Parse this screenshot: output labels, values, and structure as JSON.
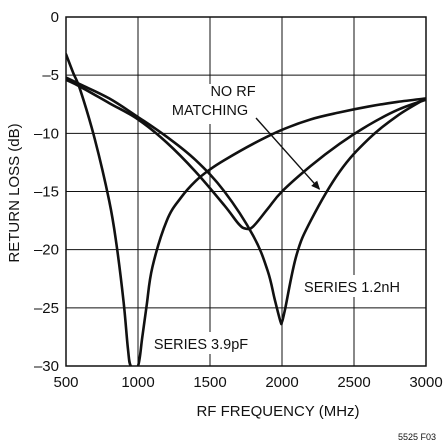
{
  "chart_data": {
    "type": "line",
    "title": "",
    "xlabel": "RF FREQUENCY (MHz)",
    "ylabel": "RETURN LOSS (dB)",
    "xlim": [
      500,
      3000
    ],
    "ylim": [
      -30,
      0
    ],
    "x_ticks": [
      500,
      1000,
      1500,
      2000,
      2500,
      3000
    ],
    "y_ticks": [
      0,
      -5,
      -10,
      -15,
      -20,
      -25,
      -30
    ],
    "x_tick_labels": [
      "500",
      "1000",
      "1500",
      "2000",
      "2500",
      "3000"
    ],
    "y_tick_labels": [
      "0",
      "–5",
      "–10",
      "–15",
      "–20",
      "–25",
      "–30"
    ],
    "grid": true,
    "series": [
      {
        "name": "NO RF MATCHING",
        "x": [
          500,
          600,
          800,
          1000,
          1200,
          1400,
          1600,
          1700,
          1750,
          1800,
          1900,
          2000,
          2200,
          2400,
          2600,
          2800,
          3000
        ],
        "y": [
          -5.4,
          -6.0,
          -7.4,
          -8.8,
          -10.8,
          -13.3,
          -16.2,
          -17.8,
          -18.2,
          -18.0,
          -16.5,
          -15.0,
          -12.8,
          -10.9,
          -9.3,
          -8.0,
          -7.1
        ]
      },
      {
        "name": "SERIES 1.2nH",
        "x": [
          500,
          600,
          800,
          1000,
          1200,
          1400,
          1600,
          1800,
          1900,
          1950,
          1990,
          2000,
          2020,
          2100,
          2200,
          2400,
          2600,
          2800,
          3000
        ],
        "y": [
          -5.2,
          -5.8,
          -7.0,
          -8.6,
          -10.3,
          -12.3,
          -15.0,
          -18.8,
          -21.8,
          -24.3,
          -26.2,
          -26.2,
          -25.2,
          -20.5,
          -17.5,
          -13.3,
          -10.5,
          -8.5,
          -7.0
        ]
      },
      {
        "name": "SERIES 3.9pF",
        "x": [
          500,
          550,
          600,
          700,
          800,
          850,
          900,
          930,
          950,
          1000,
          1030,
          1060,
          1100,
          1200,
          1300,
          1400,
          1500,
          1600,
          1800,
          2000,
          2200,
          2400,
          2600,
          2800,
          3000
        ],
        "y": [
          -3.2,
          -4.8,
          -6.3,
          -10.5,
          -15.8,
          -19.5,
          -24.5,
          -28.5,
          -30.0,
          -30.0,
          -27.5,
          -24.8,
          -21.5,
          -17.5,
          -15.5,
          -14.1,
          -13.1,
          -12.3,
          -10.9,
          -9.7,
          -8.8,
          -8.2,
          -7.7,
          -7.3,
          -7.0
        ]
      }
    ],
    "annotations": [
      {
        "text_lines": [
          "NO RF",
          "MATCHING"
        ],
        "arrow_to": [
          2260,
          -14.8
        ]
      },
      {
        "text_lines": [
          "SERIES 1.2nH"
        ]
      },
      {
        "text_lines": [
          "SERIES 3.9pF"
        ]
      }
    ],
    "figure_id": "5525 F03"
  }
}
